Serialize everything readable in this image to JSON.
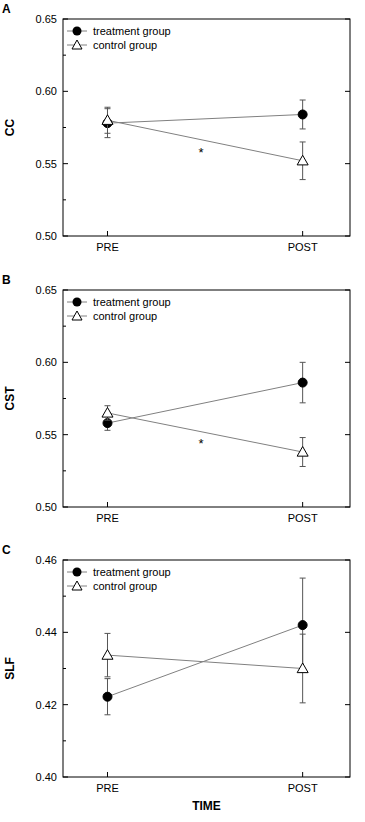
{
  "chart_data": [
    {
      "type": "line",
      "title": "A",
      "y_label": "CC",
      "categories": [
        "PRE",
        "POST"
      ],
      "series": [
        {
          "name": "treatment group",
          "color": "#000000",
          "marker": "circle",
          "values": [
            0.578,
            0.584
          ],
          "errors": [
            0.01,
            0.01
          ]
        },
        {
          "name": "control group",
          "color": "#000000",
          "marker": "triangle",
          "values": [
            0.58,
            0.552
          ],
          "errors": [
            0.009,
            0.013
          ]
        }
      ],
      "ylim": [
        0.5,
        0.65
      ],
      "yticks": [
        {
          "value": 0.5,
          "label": "0.50"
        },
        0.55,
        {
          "value": 0.6,
          "label": "0.60"
        },
        0.65
      ],
      "legend": "upper left",
      "grid": false,
      "annotations": [
        "*"
      ]
    },
    {
      "type": "line",
      "title": "B",
      "y_label": "CST",
      "categories": [
        "PRE",
        "POST"
      ],
      "series": [
        {
          "name": "treatment group",
          "color": "#000000",
          "marker": "circle",
          "values": [
            0.558,
            0.586
          ],
          "errors": [
            0.005,
            0.014
          ]
        },
        {
          "name": "control group",
          "color": "#000000",
          "marker": "triangle",
          "values": [
            0.565,
            0.538
          ],
          "errors": [
            0.005,
            0.01
          ]
        }
      ],
      "ylim": [
        0.5,
        0.65
      ],
      "yticks": [
        {
          "value": 0.5,
          "label": "0.50"
        },
        0.55,
        {
          "value": 0.6,
          "label": "0.60"
        },
        0.65
      ],
      "legend": "upper left",
      "grid": false,
      "annotations": [
        "*"
      ]
    },
    {
      "type": "line",
      "title": "C",
      "y_label": "SLF",
      "x_label": "TIME",
      "categories": [
        "PRE",
        "POST"
      ],
      "series": [
        {
          "name": "treatment group",
          "color": "#000000",
          "marker": "circle",
          "values": [
            0.4222,
            0.442
          ],
          "errors": [
            0.005,
            0.013
          ]
        },
        {
          "name": "control group",
          "color": "#000000",
          "marker": "triangle",
          "values": [
            0.4337,
            0.43
          ],
          "errors": [
            0.006,
            0.0095
          ]
        }
      ],
      "ylim": [
        0.4,
        0.46
      ],
      "yticks": [
        {
          "value": 0.4,
          "label": "0.40"
        },
        0.42,
        0.44,
        0.46
      ],
      "legend": "upper left",
      "grid": false
    }
  ]
}
